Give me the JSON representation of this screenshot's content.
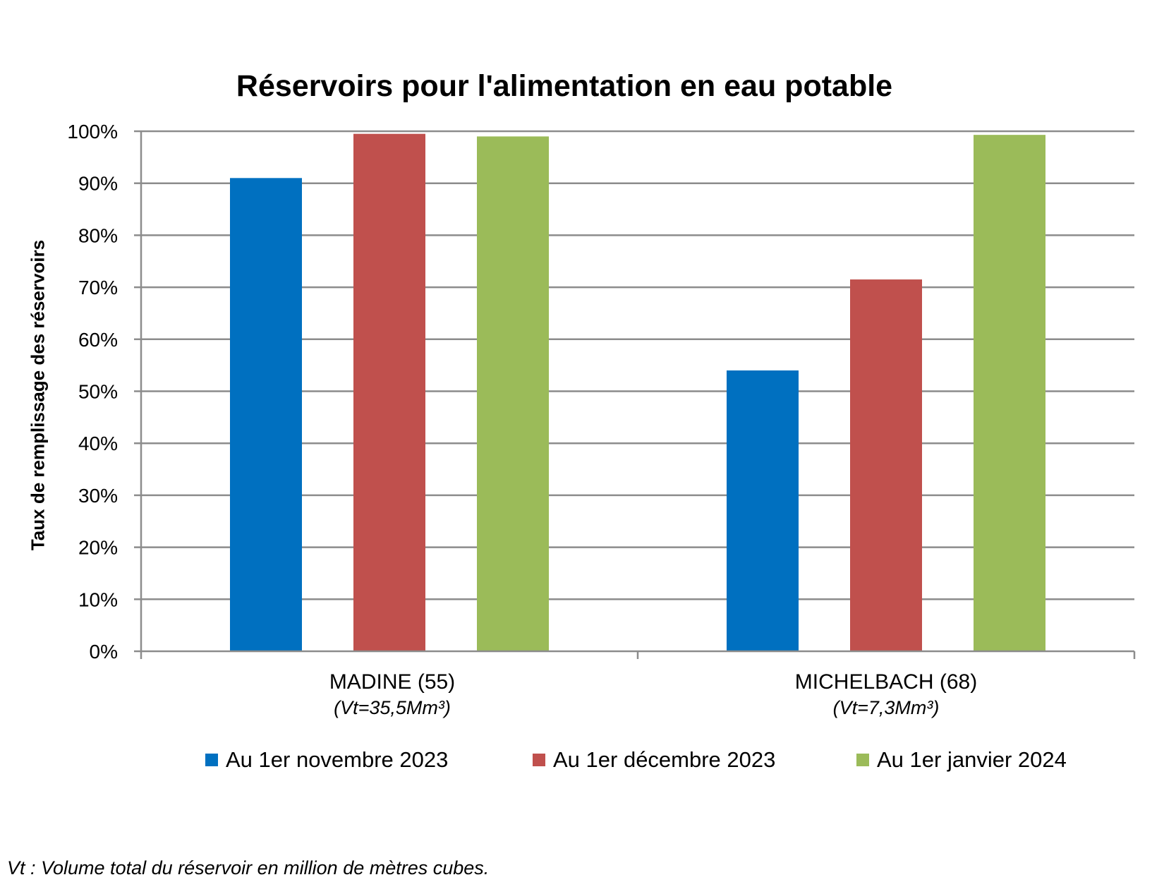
{
  "chart_data": {
    "type": "bar",
    "title": "Réservoirs pour l'alimentation en eau potable",
    "ylabel": "Taux de remplissage des réservoirs",
    "xlabel": "",
    "ylim": [
      0,
      100
    ],
    "yticks": [
      "0%",
      "10%",
      "20%",
      "30%",
      "40%",
      "50%",
      "60%",
      "70%",
      "80%",
      "90%",
      "100%"
    ],
    "categories": [
      "MADINE (55)",
      "MICHELBACH (68)"
    ],
    "category_sublabels": [
      "(Vt=35,5Mm³)",
      "(Vt=7,3Mm³)"
    ],
    "series": [
      {
        "name": "Au 1er novembre 2023",
        "color": "#0070C0",
        "values": [
          91,
          54
        ]
      },
      {
        "name": "Au 1er décembre 2023",
        "color": "#C0504D",
        "values": [
          99.5,
          71.5
        ]
      },
      {
        "name": "Au 1er janvier 2024",
        "color": "#9BBB59",
        "values": [
          99,
          99.3
        ]
      }
    ],
    "grid": true,
    "legend": "bottom"
  },
  "footnote": "Vt : Volume total du réservoir en million de mètres cubes."
}
